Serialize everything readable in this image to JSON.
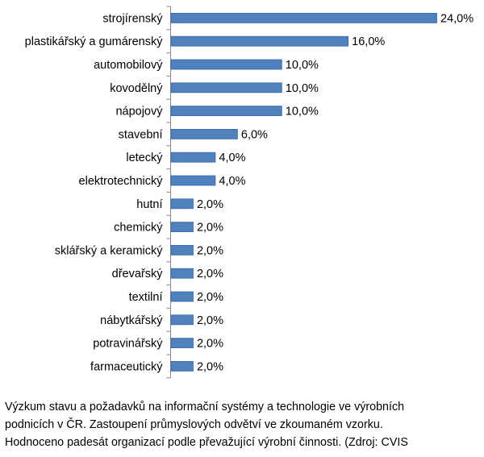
{
  "chart_data": {
    "type": "bar",
    "orientation": "horizontal",
    "categories": [
      "strojírenský",
      "plastikářský a gumárenský",
      "automobilový",
      "kovodělný",
      "nápojový",
      "stavební",
      "letecký",
      "elektrotechnický",
      "hutní",
      "chemický",
      "sklářský a keramický",
      "dřevařský",
      "textilní",
      "nábytkářský",
      "potravinářský",
      "farmaceutický"
    ],
    "values": [
      24,
      16,
      10,
      10,
      10,
      6,
      4,
      4,
      2,
      2,
      2,
      2,
      2,
      2,
      2,
      2
    ],
    "data_labels": [
      "24,0%",
      "16,0%",
      "10,0%",
      "10,0%",
      "10,0%",
      "6,0%",
      "4,0%",
      "4,0%",
      "2,0%",
      "2,0%",
      "2,0%",
      "2,0%",
      "2,0%",
      "2,0%",
      "2,0%",
      "2,0%"
    ],
    "unit": "%",
    "xlim": [
      0,
      24
    ],
    "grid": false,
    "legend": "none",
    "bar_color": "#4f81bd",
    "bar_edge_color": "#3a6aa5"
  },
  "caption": "Výzkum stavu a požadavků na informační systémy a technologie ve výrobních\npodnicích v ČR. Zastoupení průmyslových odvětví ve zkoumaném vzorku.\nHodnoceno padesát organizací podle převažující výrobní činnosti. (Zdroj: CVIS"
}
